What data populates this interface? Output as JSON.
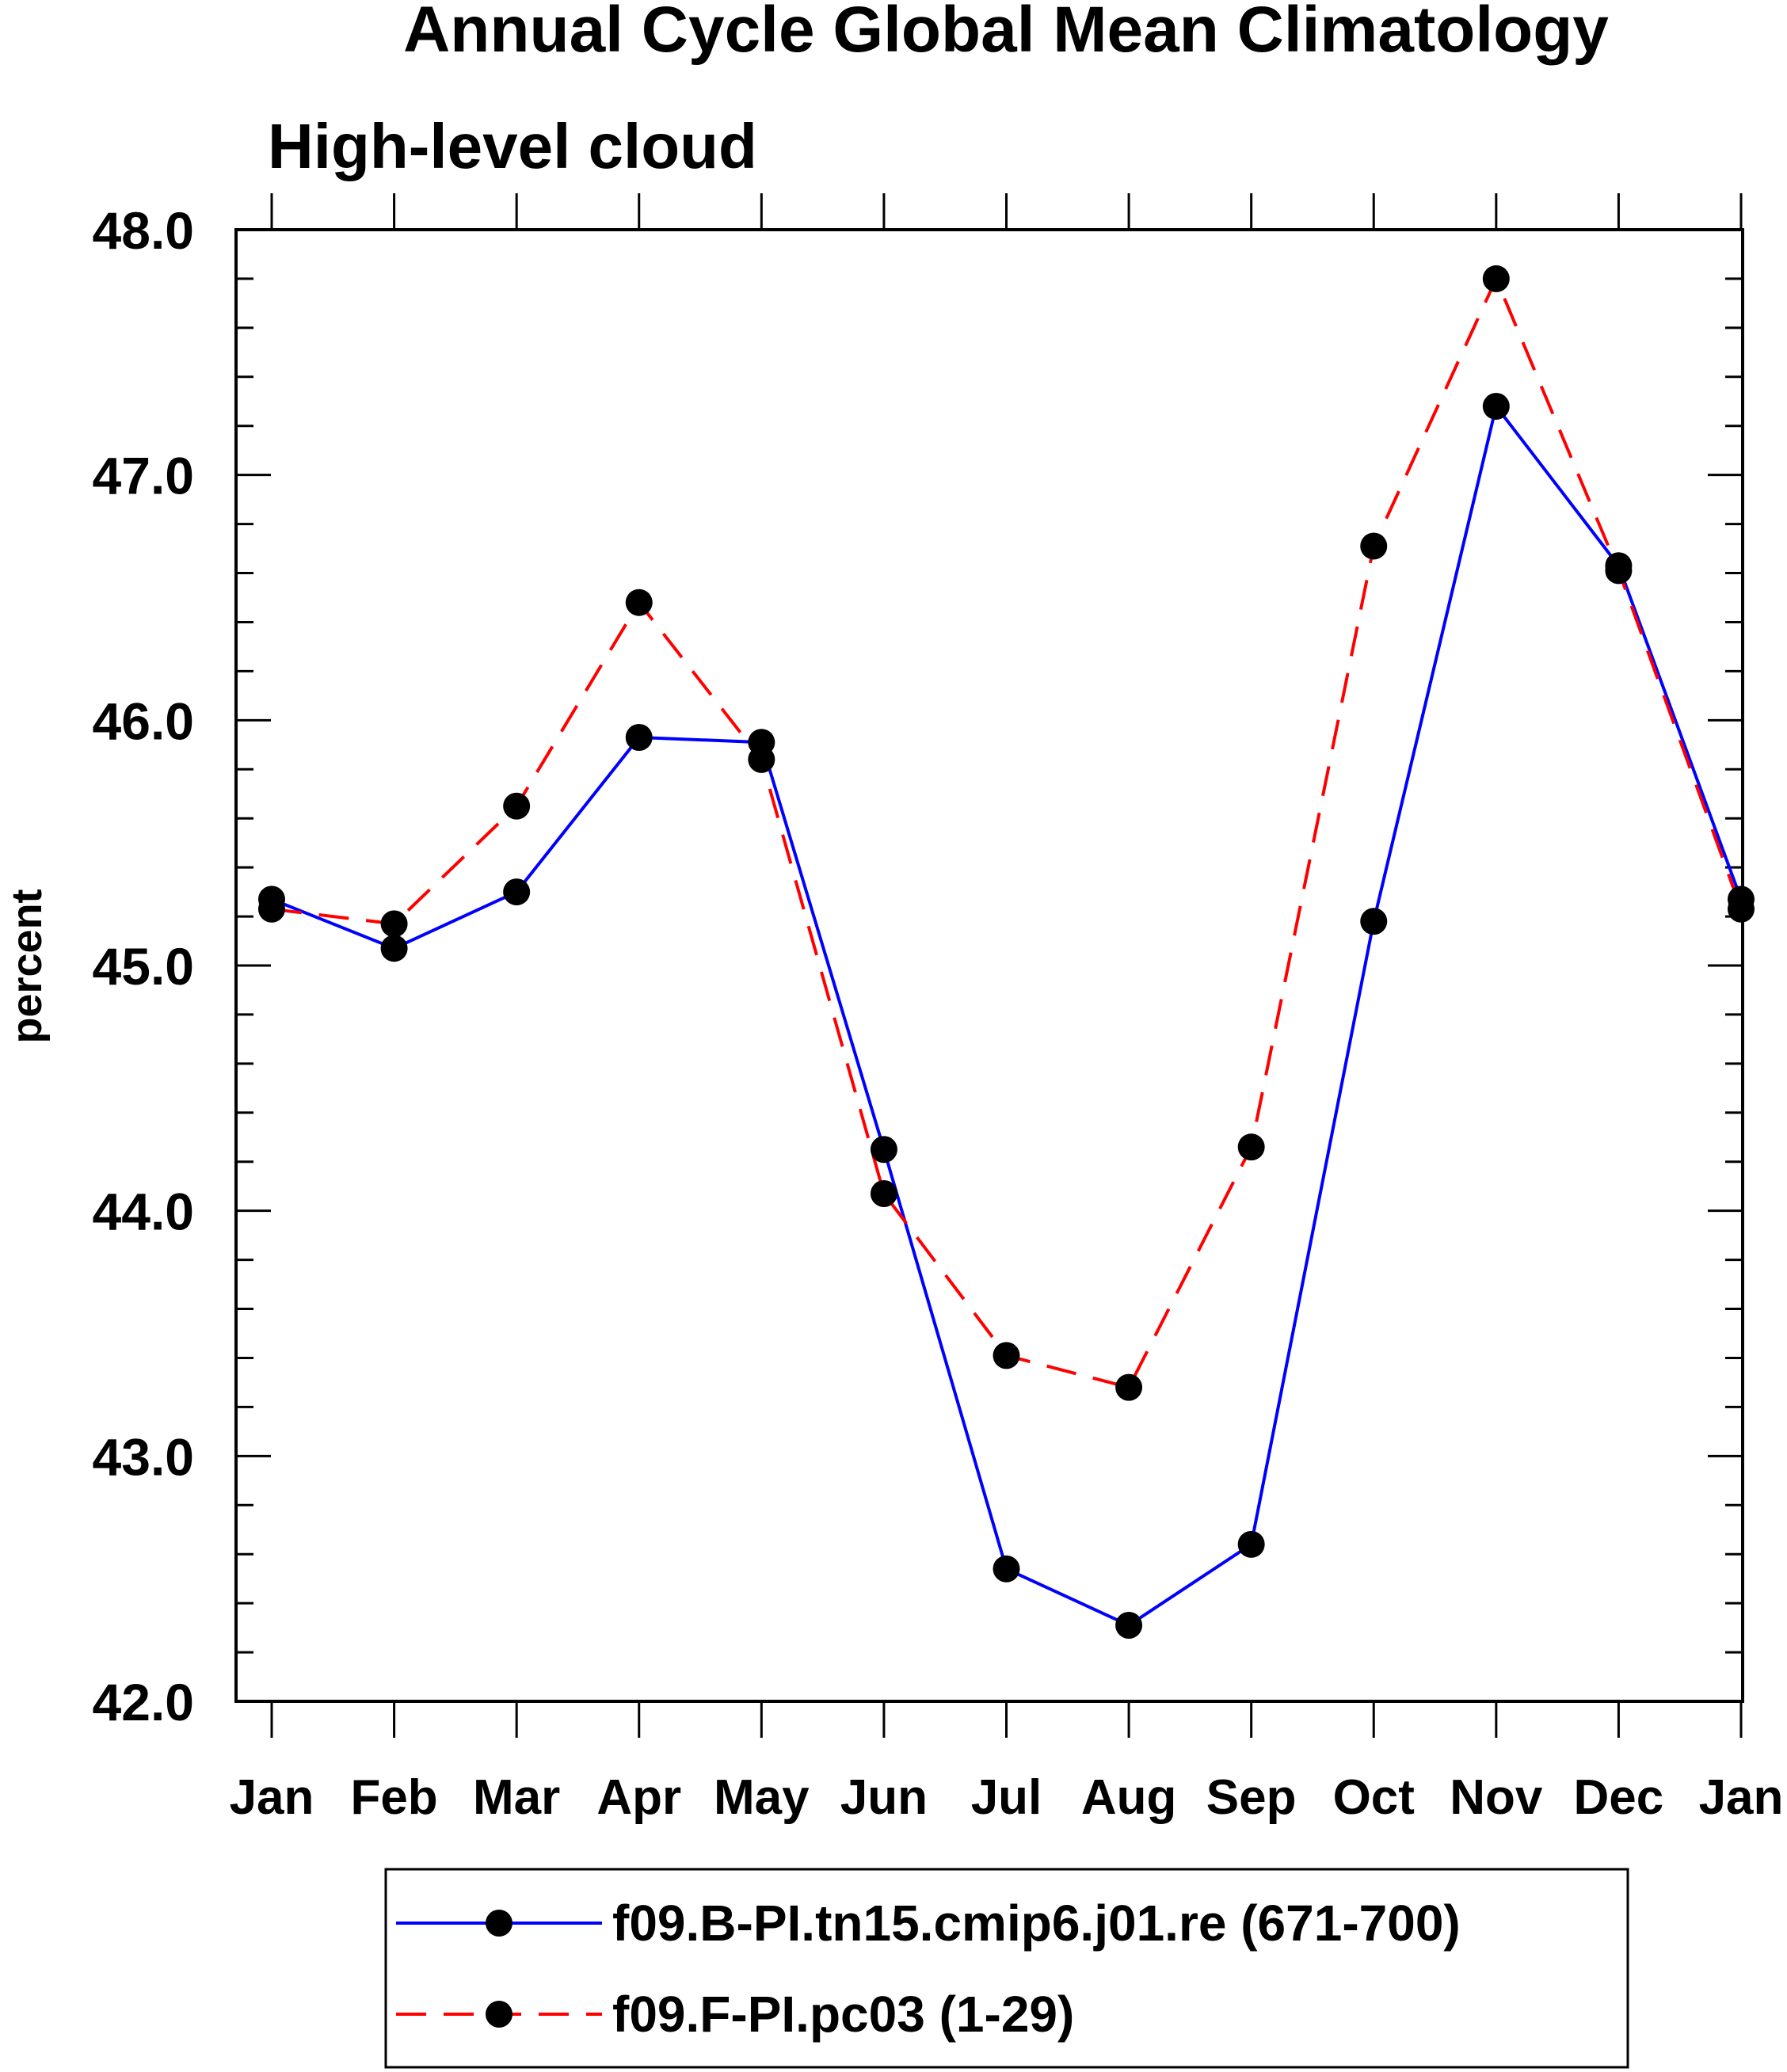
{
  "chart_data": {
    "type": "line",
    "title": "Annual Cycle Global Mean Climatology",
    "subtitle": "High-level cloud",
    "xlabel": "",
    "ylabel": "percent",
    "categories": [
      "Jan",
      "Feb",
      "Mar",
      "Apr",
      "May",
      "Jun",
      "Jul",
      "Aug",
      "Sep",
      "Oct",
      "Nov",
      "Dec",
      "Jan"
    ],
    "ylim": [
      42.0,
      48.0
    ],
    "yticks": [
      "42.0",
      "43.0",
      "44.0",
      "45.0",
      "46.0",
      "47.0",
      "48.0"
    ],
    "series": [
      {
        "name": "f09.B-PI.tn15.cmip6.j01.re (671-700)",
        "color": "#0000ff",
        "line_style": "solid",
        "marker": "filled-circle",
        "values": [
          45.27,
          45.07,
          45.3,
          45.93,
          45.91,
          44.25,
          42.54,
          42.31,
          42.64,
          45.18,
          47.28,
          46.63,
          45.27
        ]
      },
      {
        "name": "f09.F-PI.pc03 (1-29)",
        "color": "#ff0000",
        "line_style": "dashed",
        "marker": "filled-circle",
        "values": [
          45.23,
          45.17,
          45.65,
          46.48,
          45.84,
          44.07,
          43.41,
          43.28,
          44.26,
          46.71,
          47.8,
          46.61,
          45.23
        ]
      }
    ],
    "legend_position": "bottom-center",
    "grid": false
  }
}
